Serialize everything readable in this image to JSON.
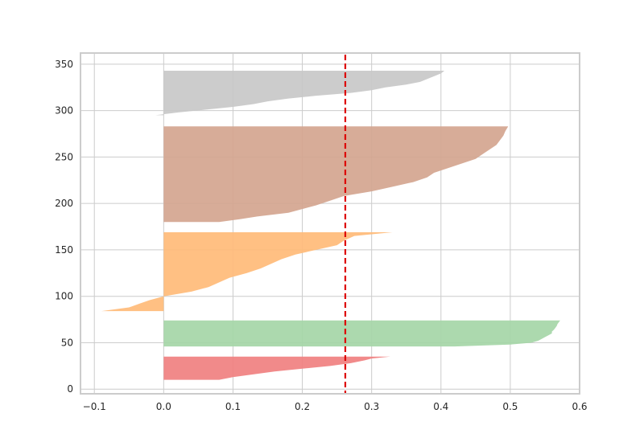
{
  "chart_data": {
    "type": "area",
    "title": "",
    "xlabel": "",
    "ylabel": "",
    "xlim": [
      -0.12,
      0.6
    ],
    "ylim": [
      -5,
      362
    ],
    "x_ticks": [
      -0.1,
      0.0,
      0.1,
      0.2,
      0.3,
      0.4,
      0.5,
      0.6
    ],
    "x_tick_labels": [
      "−0.1",
      "0.0",
      "0.1",
      "0.2",
      "0.3",
      "0.4",
      "0.5",
      "0.6"
    ],
    "y_ticks": [
      0,
      50,
      100,
      150,
      200,
      250,
      300,
      350
    ],
    "y_tick_labels": [
      "0",
      "50",
      "100",
      "150",
      "200",
      "250",
      "300",
      "350"
    ],
    "grid": true,
    "legend": "none",
    "average_line": {
      "x": 0.262,
      "color": "#dd0000",
      "style": "dashed"
    },
    "series": [
      {
        "color": "#f08080",
        "profile": [
          [
            10,
            0.08
          ],
          [
            13,
            0.1
          ],
          [
            16,
            0.13
          ],
          [
            19,
            0.16
          ],
          [
            22,
            0.2
          ],
          [
            25,
            0.24
          ],
          [
            28,
            0.27
          ],
          [
            31,
            0.29
          ],
          [
            33,
            0.3
          ],
          [
            35,
            0.327
          ]
        ]
      },
      {
        "color": "#a5d6a7",
        "profile": [
          [
            46,
            0.42
          ],
          [
            48,
            0.5
          ],
          [
            50,
            0.53
          ],
          [
            52,
            0.54
          ],
          [
            54,
            0.545
          ],
          [
            56,
            0.55
          ],
          [
            58,
            0.555
          ],
          [
            60,
            0.56
          ],
          [
            62,
            0.56
          ],
          [
            64,
            0.563
          ],
          [
            66,
            0.565
          ],
          [
            68,
            0.567
          ],
          [
            70,
            0.568
          ],
          [
            72,
            0.57
          ],
          [
            74,
            0.572
          ]
        ]
      },
      {
        "color": "#ffbb78",
        "profile": [
          [
            84,
            -0.09
          ],
          [
            88,
            -0.05
          ],
          [
            92,
            -0.035
          ],
          [
            96,
            -0.02
          ],
          [
            100,
            0.0
          ],
          [
            105,
            0.04
          ],
          [
            110,
            0.065
          ],
          [
            115,
            0.08
          ],
          [
            120,
            0.095
          ],
          [
            125,
            0.12
          ],
          [
            130,
            0.14
          ],
          [
            135,
            0.155
          ],
          [
            140,
            0.17
          ],
          [
            145,
            0.19
          ],
          [
            150,
            0.22
          ],
          [
            155,
            0.25
          ],
          [
            160,
            0.26
          ],
          [
            165,
            0.275
          ],
          [
            169,
            0.33
          ]
        ]
      },
      {
        "color": "#d4a58f",
        "profile": [
          [
            180,
            0.08
          ],
          [
            183,
            0.11
          ],
          [
            186,
            0.135
          ],
          [
            190,
            0.18
          ],
          [
            194,
            0.2
          ],
          [
            198,
            0.22
          ],
          [
            203,
            0.24
          ],
          [
            208,
            0.26
          ],
          [
            213,
            0.3
          ],
          [
            218,
            0.33
          ],
          [
            223,
            0.36
          ],
          [
            228,
            0.38
          ],
          [
            233,
            0.39
          ],
          [
            238,
            0.41
          ],
          [
            243,
            0.43
          ],
          [
            248,
            0.45
          ],
          [
            253,
            0.46
          ],
          [
            258,
            0.47
          ],
          [
            263,
            0.48
          ],
          [
            268,
            0.485
          ],
          [
            273,
            0.49
          ],
          [
            278,
            0.493
          ],
          [
            283,
            0.497
          ]
        ]
      },
      {
        "color": "#c8c8c8",
        "profile": [
          [
            295,
            -0.012
          ],
          [
            298,
            0.02
          ],
          [
            301,
            0.06
          ],
          [
            304,
            0.1
          ],
          [
            307,
            0.13
          ],
          [
            310,
            0.15
          ],
          [
            313,
            0.18
          ],
          [
            316,
            0.22
          ],
          [
            319,
            0.27
          ],
          [
            322,
            0.3
          ],
          [
            325,
            0.32
          ],
          [
            328,
            0.35
          ],
          [
            331,
            0.37
          ],
          [
            334,
            0.38
          ],
          [
            337,
            0.39
          ],
          [
            340,
            0.4
          ],
          [
            343,
            0.405
          ]
        ]
      }
    ]
  }
}
